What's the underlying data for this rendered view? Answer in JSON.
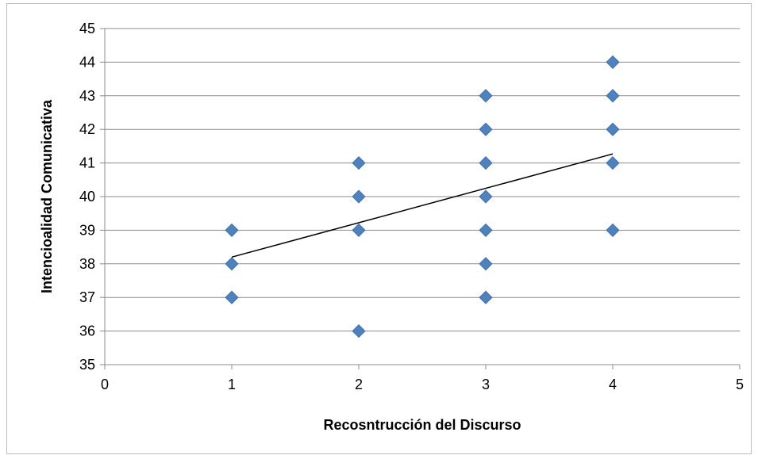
{
  "chart_data": {
    "type": "scatter",
    "title": "",
    "xlabel": "Recosntrucción del Discurso",
    "ylabel": "Intencioalidad Comunicativa",
    "xlim": [
      0,
      5
    ],
    "ylim": [
      35,
      45
    ],
    "x_ticks": [
      0,
      1,
      2,
      3,
      4,
      5
    ],
    "y_ticks": [
      35,
      36,
      37,
      38,
      39,
      40,
      41,
      42,
      43,
      44,
      45
    ],
    "grid": "horizontal",
    "marker": "diamond",
    "marker_color": "#4F81BD",
    "points": [
      {
        "x": 1,
        "y": 39
      },
      {
        "x": 1,
        "y": 38
      },
      {
        "x": 1,
        "y": 37
      },
      {
        "x": 2,
        "y": 41
      },
      {
        "x": 2,
        "y": 40
      },
      {
        "x": 2,
        "y": 39
      },
      {
        "x": 2,
        "y": 36
      },
      {
        "x": 3,
        "y": 43
      },
      {
        "x": 3,
        "y": 42
      },
      {
        "x": 3,
        "y": 41
      },
      {
        "x": 3,
        "y": 40
      },
      {
        "x": 3,
        "y": 39
      },
      {
        "x": 3,
        "y": 38
      },
      {
        "x": 3,
        "y": 37
      },
      {
        "x": 4,
        "y": 44
      },
      {
        "x": 4,
        "y": 43
      },
      {
        "x": 4,
        "y": 42
      },
      {
        "x": 4,
        "y": 41
      },
      {
        "x": 4,
        "y": 39
      }
    ],
    "trendline": {
      "type": "linear",
      "x0": 1,
      "y0": 38.2,
      "x1": 4,
      "y1": 41.27,
      "color": "#000000"
    }
  }
}
